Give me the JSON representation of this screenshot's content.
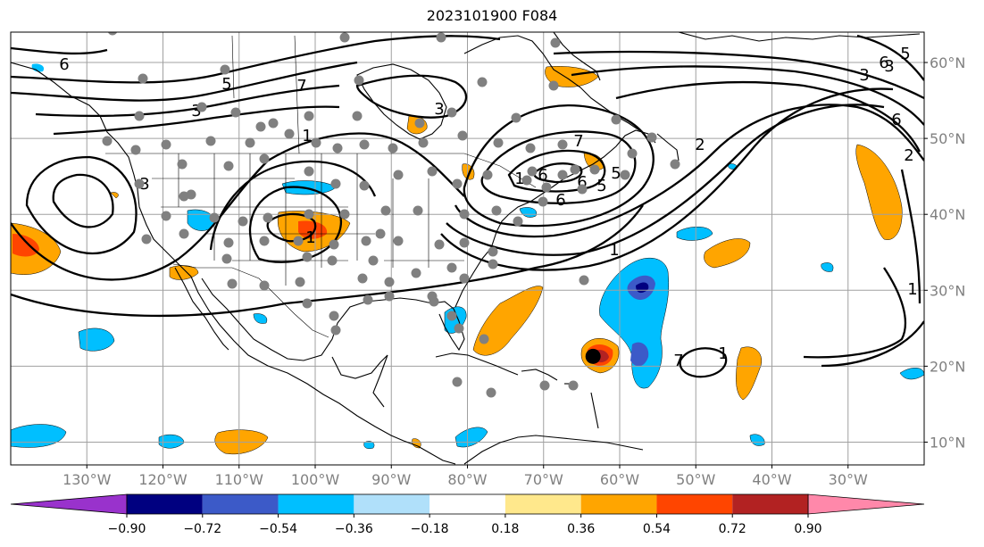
{
  "title": "2023101900 F084",
  "map": {
    "projection": "PlateCarree",
    "extent": {
      "lon": [
        -140,
        -20
      ],
      "lat": [
        7,
        64
      ]
    },
    "lon_ticks": [
      {
        "value": -130,
        "label": "130°W"
      },
      {
        "value": -120,
        "label": "120°W"
      },
      {
        "value": -110,
        "label": "110°W"
      },
      {
        "value": -100,
        "label": "100°W"
      },
      {
        "value": -90,
        "label": "90°W"
      },
      {
        "value": -80,
        "label": "80°W"
      },
      {
        "value": -70,
        "label": "70°W"
      },
      {
        "value": -60,
        "label": "60°W"
      },
      {
        "value": -50,
        "label": "50°W"
      },
      {
        "value": -40,
        "label": "40°W"
      },
      {
        "value": -30,
        "label": "30°W"
      }
    ],
    "lat_ticks": [
      {
        "value": 10,
        "label": "10°N"
      },
      {
        "value": 20,
        "label": "20°N"
      },
      {
        "value": 30,
        "label": "30°N"
      },
      {
        "value": 40,
        "label": "40°N"
      },
      {
        "value": 50,
        "label": "50°N"
      },
      {
        "value": 60,
        "label": "60°N"
      }
    ],
    "gridlines": true,
    "contour_labels": [
      "6",
      "5",
      "3",
      "1",
      "3",
      "6",
      "1",
      "5",
      "6",
      "7",
      "2",
      "3",
      "1",
      "6",
      "5",
      "3",
      "1",
      "1",
      "2",
      "6",
      "3",
      "7",
      "1",
      "5",
      "6",
      "7"
    ],
    "storm_center": {
      "lon": -63.5,
      "lat": 21.3
    }
  },
  "colorbar": {
    "levels": [
      "−0.90",
      "−0.72",
      "−0.54",
      "−0.36",
      "−0.18",
      "0.18",
      "0.36",
      "0.54",
      "0.72",
      "0.90"
    ],
    "colors": [
      "#9932cc",
      "#000080",
      "#3c5ac8",
      "#00bfff",
      "#b0e0fa",
      "#ffffff",
      "#ffe88c",
      "#ffa500",
      "#ff4500",
      "#b22222",
      "#ff88aa"
    ],
    "extend": "both"
  }
}
